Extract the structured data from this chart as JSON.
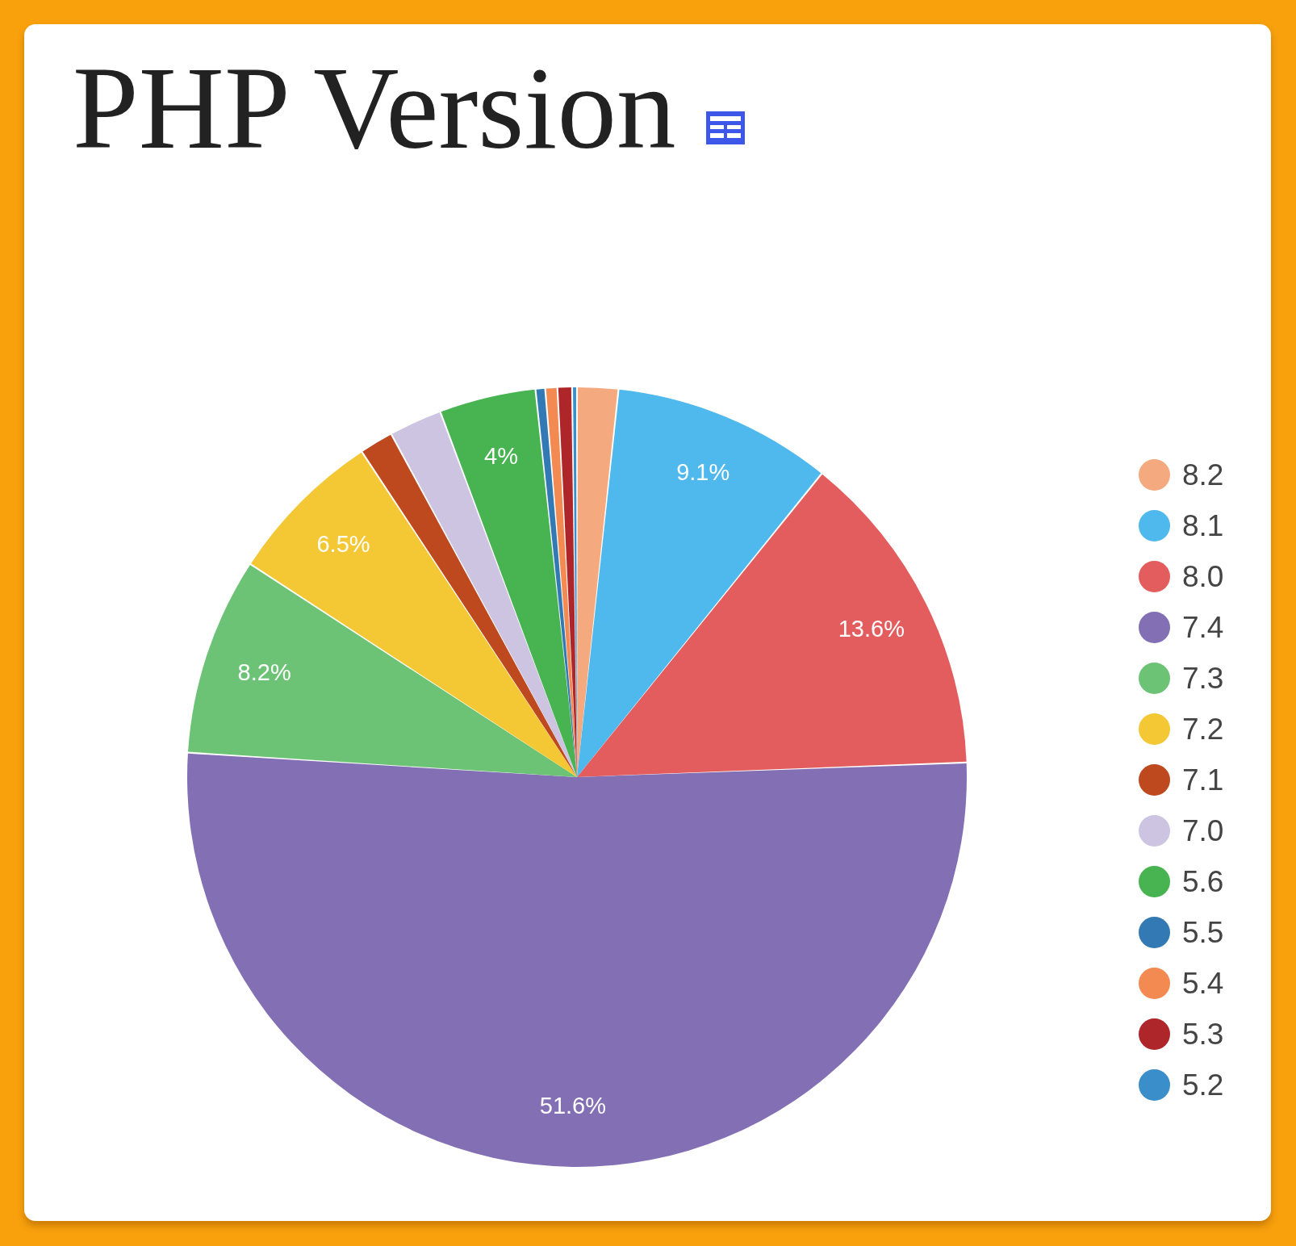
{
  "chart_data": {
    "type": "pie",
    "title": "PHP Version",
    "categories": [
      "8.2",
      "8.1",
      "8.0",
      "7.4",
      "7.3",
      "7.2",
      "7.1",
      "7.0",
      "5.6",
      "5.5",
      "5.4",
      "5.3",
      "5.2"
    ],
    "values": [
      1.7,
      9.1,
      13.6,
      51.6,
      8.2,
      6.5,
      1.4,
      2.2,
      4.0,
      0.4,
      0.5,
      0.6,
      0.2
    ],
    "colors": [
      "#f5a97f",
      "#4fb8ec",
      "#e35d5e",
      "#836fb4",
      "#6dc375",
      "#f4c734",
      "#bf491f",
      "#cdc4e2",
      "#48b351",
      "#337ab5",
      "#f28a52",
      "#ae262a",
      "#3a8fca"
    ],
    "value_labels": [
      null,
      "9.1%",
      "13.6%",
      "51.6%",
      "8.2%",
      "6.5%",
      null,
      null,
      "4%",
      null,
      null,
      null,
      null
    ],
    "legend": "right"
  }
}
